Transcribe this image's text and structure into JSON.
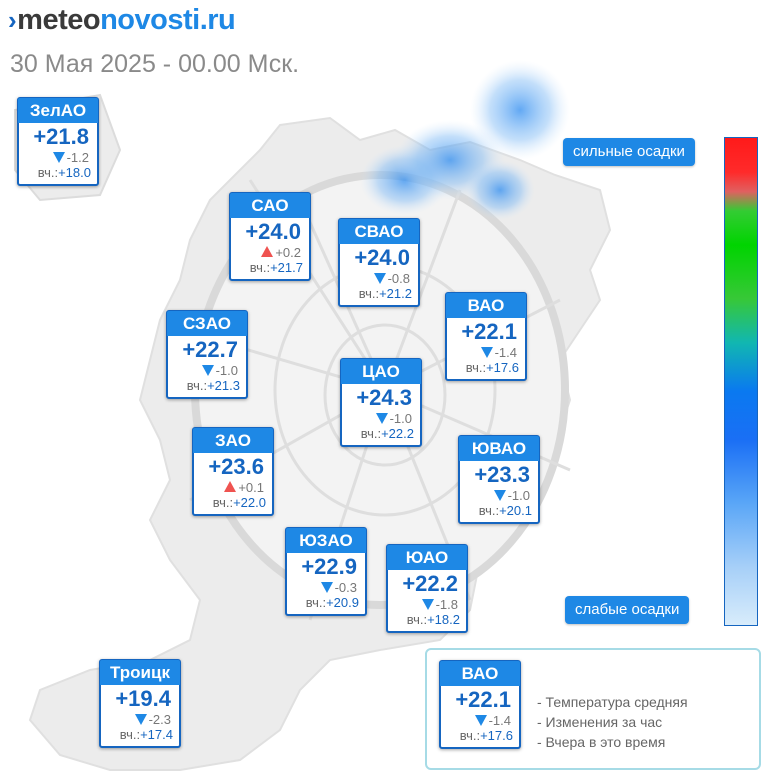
{
  "header": {
    "logo_prefix": "meteo",
    "logo_suffix": "novosti.ru",
    "subtitle": "30 Мая 2025 - 00.00 Мск."
  },
  "yesterday_label": "вч.:",
  "districts": [
    {
      "name": "ЗелАО",
      "temp": "+21.8",
      "delta": "-1.2",
      "trend": "down",
      "yesterday": "+18.0"
    },
    {
      "name": "САО",
      "temp": "+24.0",
      "delta": "+0.2",
      "trend": "up",
      "yesterday": "+21.7"
    },
    {
      "name": "СВАО",
      "temp": "+24.0",
      "delta": "-0.8",
      "trend": "down",
      "yesterday": "+21.2"
    },
    {
      "name": "ВАО",
      "temp": "+22.1",
      "delta": "-1.4",
      "trend": "down",
      "yesterday": "+17.6"
    },
    {
      "name": "СЗАО",
      "temp": "+22.7",
      "delta": "-1.0",
      "trend": "down",
      "yesterday": "+21.3"
    },
    {
      "name": "ЦАО",
      "temp": "+24.3",
      "delta": "-1.0",
      "trend": "down",
      "yesterday": "+22.2"
    },
    {
      "name": "ЗАО",
      "temp": "+23.6",
      "delta": "+0.1",
      "trend": "up",
      "yesterday": "+22.0"
    },
    {
      "name": "ЮВАО",
      "temp": "+23.3",
      "delta": "-1.0",
      "trend": "down",
      "yesterday": "+20.1"
    },
    {
      "name": "ЮЗАО",
      "temp": "+22.9",
      "delta": "-0.3",
      "trend": "down",
      "yesterday": "+20.9"
    },
    {
      "name": "ЮАО",
      "temp": "+22.2",
      "delta": "-1.8",
      "trend": "down",
      "yesterday": "+18.2"
    },
    {
      "name": "Троицк",
      "temp": "+19.4",
      "delta": "-2.3",
      "trend": "down",
      "yesterday": "+17.4"
    }
  ],
  "precip_scale": {
    "high_label": "сильные осадки",
    "low_label": "слабые осадки"
  },
  "legend": {
    "sample": {
      "name": "ВАО",
      "temp": "+22.1",
      "delta": "-1.4",
      "trend": "down",
      "yesterday": "+17.6"
    },
    "line1": "- Температура средняя",
    "line2": "- Изменения за час",
    "line3": "- Вчера в это время"
  },
  "colors": {
    "card_header": "#1e88e5",
    "card_border": "#1565c0",
    "trend_up": "#ef5350",
    "trend_down": "#1e88e5"
  }
}
